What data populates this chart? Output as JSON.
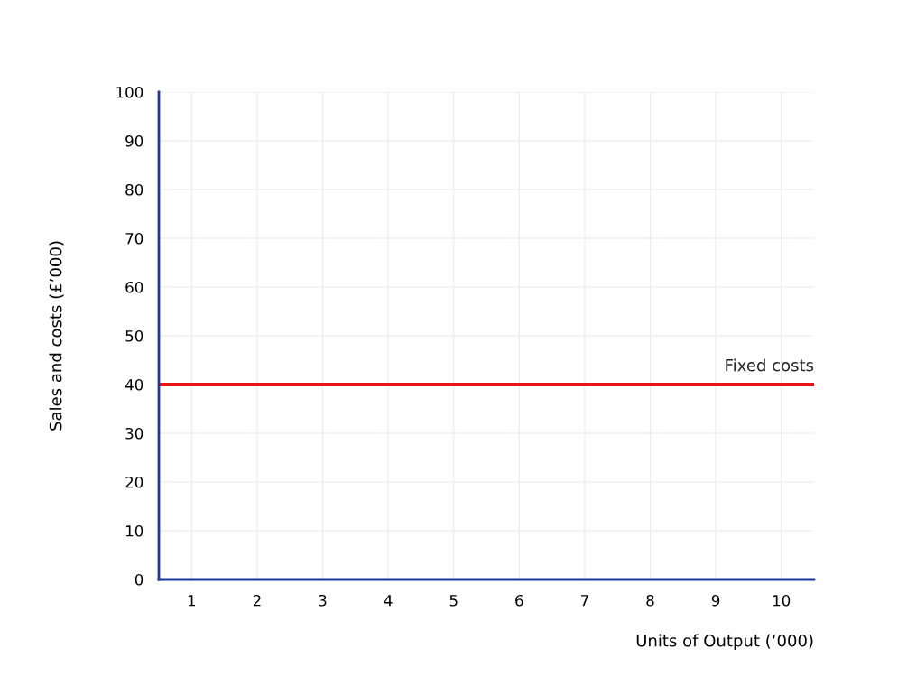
{
  "chart_data": {
    "type": "line",
    "xlabel": "Units of Output (‘000)",
    "ylabel": "Sales and costs (£’000)",
    "xlim": [
      0.5,
      10.5
    ],
    "xticks": [
      1,
      2,
      3,
      4,
      5,
      6,
      7,
      8,
      9,
      10
    ],
    "ylim": [
      0,
      100
    ],
    "yticks": [
      0,
      10,
      20,
      30,
      40,
      50,
      60,
      70,
      80,
      90,
      100
    ],
    "grid": true,
    "series": [
      {
        "name": "Fixed costs",
        "color": "#e81416",
        "x": [
          0.5,
          10.5
        ],
        "values": [
          40,
          40
        ]
      }
    ]
  }
}
